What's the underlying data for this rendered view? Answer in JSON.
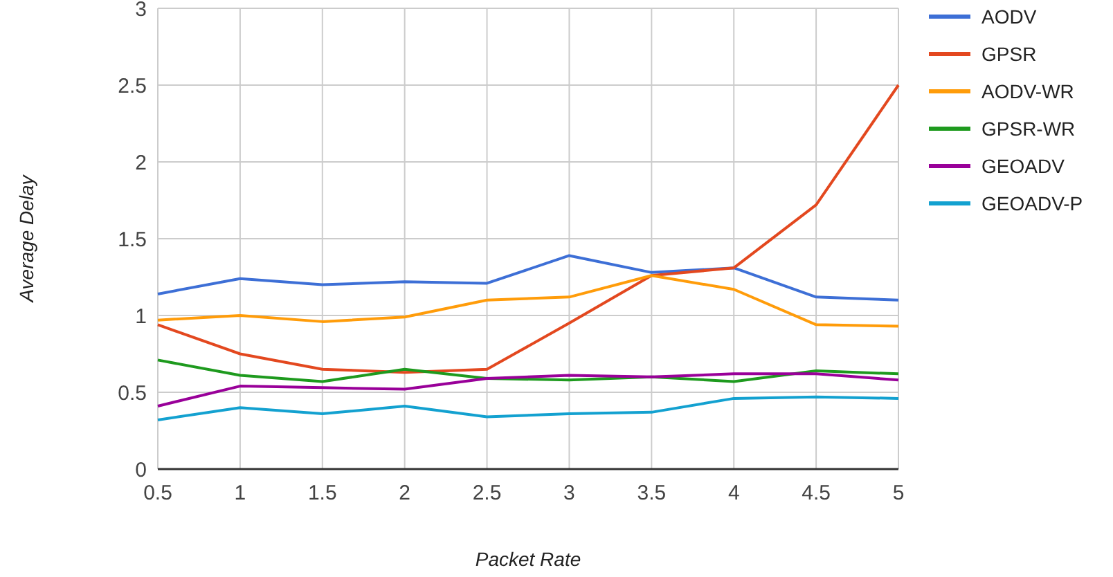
{
  "chart_data": {
    "type": "line",
    "xlabel": "Packet Rate",
    "ylabel": "Average Delay",
    "x": [
      0.5,
      1,
      1.5,
      2,
      2.5,
      3,
      3.5,
      4,
      4.5,
      5
    ],
    "xlim": [
      0.5,
      5
    ],
    "xticks": [
      0.5,
      1,
      1.5,
      2,
      2.5,
      3,
      3.5,
      4,
      4.5,
      5
    ],
    "ylim": [
      0,
      3
    ],
    "yticks": [
      0,
      0.5,
      1,
      1.5,
      2,
      2.5,
      3
    ],
    "grid": true,
    "legend": "right",
    "marker": "none",
    "line_style": "solid",
    "series": [
      {
        "name": "AODV",
        "color": "#3d6fd6",
        "values": [
          1.14,
          1.24,
          1.2,
          1.22,
          1.21,
          1.39,
          1.28,
          1.31,
          1.12,
          1.1
        ]
      },
      {
        "name": "GPSR",
        "color": "#e3481f",
        "values": [
          0.94,
          0.75,
          0.65,
          0.63,
          0.65,
          0.95,
          1.26,
          1.31,
          1.72,
          2.5
        ]
      },
      {
        "name": "AODV-WR",
        "color": "#ff9c0a",
        "values": [
          0.97,
          1.0,
          0.96,
          0.99,
          1.1,
          1.12,
          1.26,
          1.17,
          0.94,
          0.93
        ]
      },
      {
        "name": "GPSR-WR",
        "color": "#1e9a1e",
        "values": [
          0.71,
          0.61,
          0.57,
          0.65,
          0.59,
          0.58,
          0.6,
          0.57,
          0.64,
          0.62
        ]
      },
      {
        "name": "GEOADV",
        "color": "#990099",
        "values": [
          0.41,
          0.54,
          0.53,
          0.52,
          0.59,
          0.61,
          0.6,
          0.62,
          0.62,
          0.58
        ]
      },
      {
        "name": "GEOADV-P",
        "color": "#13a1d0",
        "values": [
          0.32,
          0.4,
          0.36,
          0.41,
          0.34,
          0.36,
          0.37,
          0.46,
          0.47,
          0.46
        ]
      }
    ]
  }
}
